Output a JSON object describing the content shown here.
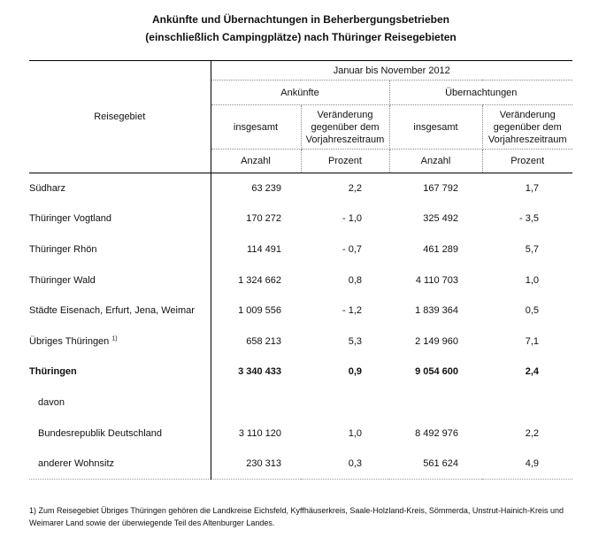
{
  "title": {
    "line1": "Ankünfte und Übernachtungen in Beherbergungsbetrieben",
    "line2": "(einschließlich Campingplätze) nach Thüringer Reisegebieten"
  },
  "table": {
    "region_column_header": "Reisegebiet",
    "period_header": "Januar bis November 2012",
    "group_headers": {
      "arrivals": "Ankünfte",
      "overnights": "Übernachtungen"
    },
    "measure_headers": {
      "total": "insgesamt",
      "change": "Veränderung gegenüber dem Vorjahreszeitraum"
    },
    "unit_headers": {
      "count": "Anzahl",
      "percent": "Prozent"
    },
    "rows": [
      {
        "region": "Südharz",
        "footnote_ref": "",
        "arrivals_total": "63 239",
        "arrivals_change": "2,2",
        "overnights_total": "167 792",
        "overnights_change": "1,7"
      },
      {
        "region": "Thüringer Vogtland",
        "footnote_ref": "",
        "arrivals_total": "170 272",
        "arrivals_change": "- 1,0",
        "overnights_total": "325 492",
        "overnights_change": "- 3,5"
      },
      {
        "region": "Thüringer Rhön",
        "footnote_ref": "",
        "arrivals_total": "114 491",
        "arrivals_change": "- 0,7",
        "overnights_total": "461 289",
        "overnights_change": "5,7"
      },
      {
        "region": "Thüringer Wald",
        "footnote_ref": "",
        "arrivals_total": "1 324 662",
        "arrivals_change": "0,8",
        "overnights_total": "4 110 703",
        "overnights_change": "1,0"
      },
      {
        "region": "Städte Eisenach, Erfurt, Jena, Weimar",
        "footnote_ref": "",
        "arrivals_total": "1 009 556",
        "arrivals_change": "- 1,2",
        "overnights_total": "1 839 364",
        "overnights_change": "0,5"
      },
      {
        "region": "Übriges Thüringen",
        "footnote_ref": "1)",
        "arrivals_total": "658 213",
        "arrivals_change": "5,3",
        "overnights_total": "2 149 960",
        "overnights_change": "7,1"
      },
      {
        "region": "Thüringen",
        "footnote_ref": "",
        "arrivals_total": "3 340 433",
        "arrivals_change": "0,9",
        "overnights_total": "9 054 600",
        "overnights_change": "2,4"
      },
      {
        "region": "davon",
        "footnote_ref": "",
        "arrivals_total": "",
        "arrivals_change": "",
        "overnights_total": "",
        "overnights_change": ""
      },
      {
        "region": "Bundesrepublik Deutschland",
        "footnote_ref": "",
        "arrivals_total": "3 110 120",
        "arrivals_change": "1,0",
        "overnights_total": "8 492 976",
        "overnights_change": "2,2"
      },
      {
        "region": "anderer Wohnsitz",
        "footnote_ref": "",
        "arrivals_total": "230 313",
        "arrivals_change": "0,3",
        "overnights_total": "561 624",
        "overnights_change": "4,9"
      }
    ]
  },
  "footnote": {
    "line1": "1) Zum Reisegebiet Übriges Thüringen gehören die Landkreise Eichsfeld, Kyffhäuserkreis, Saale-Holzland-Kreis, Sömmerda, Unstrut-Hainich-Kreis und",
    "line2": "Weimarer Land sowie der überwiegende Teil des Altenburger Landes."
  }
}
